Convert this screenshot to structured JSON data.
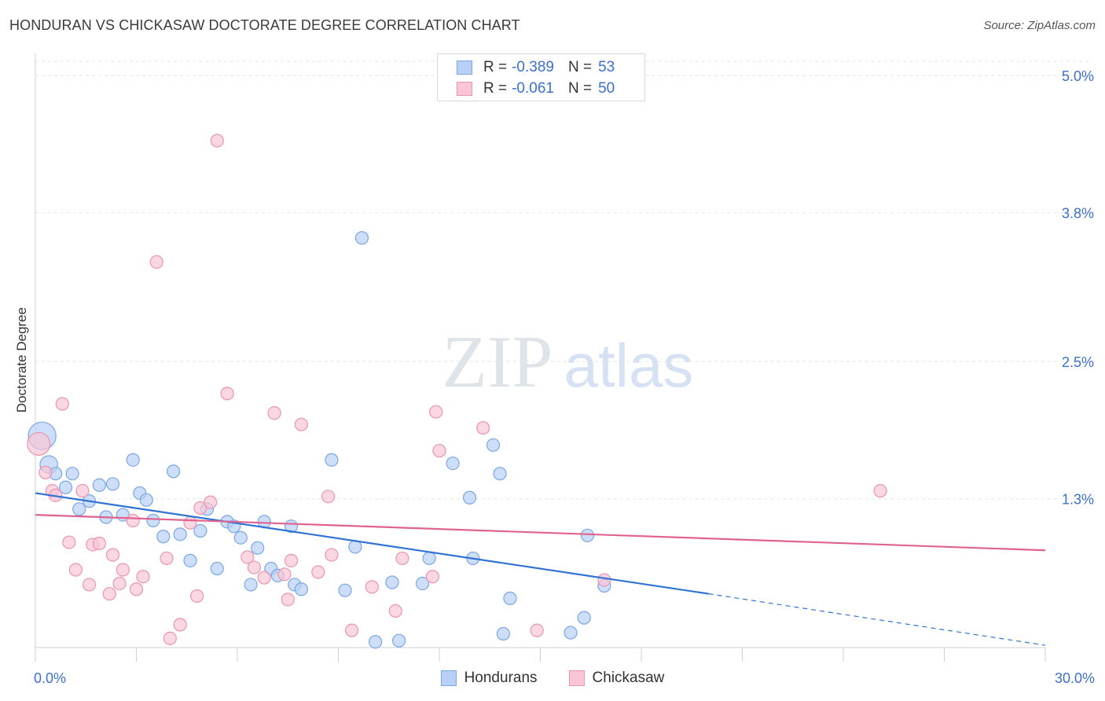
{
  "title": "HONDURAN VS CHICKASAW DOCTORATE DEGREE CORRELATION CHART",
  "source": "Source: ZipAtlas.com",
  "legend": {
    "rows": [
      {
        "r_label": "R =",
        "r_value": "-0.389",
        "n_label": "N =",
        "n_value": "53"
      },
      {
        "r_label": "R =",
        "r_value": "-0.061",
        "n_label": "N =",
        "n_value": "50"
      }
    ]
  },
  "bottom_legend": [
    "Hondurans",
    "Chickasaw"
  ],
  "colors": {
    "hondurans_fill": "#b8d0f5",
    "hondurans_stroke": "#7aa6e6",
    "hondurans_line": "#2f72d4",
    "chickasaw_fill": "#f8c6d6",
    "chickasaw_stroke": "#ec93b1",
    "chickasaw_line": "#e0628f",
    "tick_label": "#3b6fd1",
    "grid": "#e3e3e3",
    "watermark": "#dfe3ea"
  },
  "watermark": {
    "part1": "ZIP",
    "part2": "atlas"
  },
  "chart_data": {
    "type": "scatter",
    "title": "HONDURAN VS CHICKASAW DOCTORATE DEGREE CORRELATION CHART",
    "xlabel": "",
    "ylabel": "Doctorate Degree",
    "xlim": [
      0,
      30
    ],
    "ylim": [
      0,
      5.0
    ],
    "x_tick_labels": [
      "0.0%",
      "30.0%"
    ],
    "y_ticks": [
      1.3,
      2.5,
      3.8,
      5.0
    ],
    "y_tick_labels": [
      "1.3%",
      "2.5%",
      "3.8%",
      "5.0%"
    ],
    "series": [
      {
        "name": "Hondurans",
        "r": -0.389,
        "n": 53,
        "trend": {
          "x0": 0,
          "y0": 1.35,
          "x1": 20,
          "y1": 0.47,
          "dash_to_x": 30,
          "dash_to_y": 0.02
        },
        "points": [
          {
            "x": 0.2,
            "y": 1.85,
            "s": 2.2
          },
          {
            "x": 0.4,
            "y": 1.6,
            "s": 1.4
          },
          {
            "x": 0.6,
            "y": 1.52
          },
          {
            "x": 0.9,
            "y": 1.4
          },
          {
            "x": 1.1,
            "y": 1.52
          },
          {
            "x": 1.3,
            "y": 1.21
          },
          {
            "x": 1.6,
            "y": 1.28
          },
          {
            "x": 1.9,
            "y": 1.42
          },
          {
            "x": 2.1,
            "y": 1.14
          },
          {
            "x": 2.3,
            "y": 1.43
          },
          {
            "x": 2.6,
            "y": 1.16
          },
          {
            "x": 2.9,
            "y": 1.64
          },
          {
            "x": 3.1,
            "y": 1.35
          },
          {
            "x": 3.3,
            "y": 1.29
          },
          {
            "x": 3.5,
            "y": 1.11
          },
          {
            "x": 3.8,
            "y": 0.97
          },
          {
            "x": 4.1,
            "y": 1.54
          },
          {
            "x": 4.3,
            "y": 0.99
          },
          {
            "x": 4.6,
            "y": 0.76
          },
          {
            "x": 4.9,
            "y": 1.02
          },
          {
            "x": 5.1,
            "y": 1.21
          },
          {
            "x": 5.4,
            "y": 0.69
          },
          {
            "x": 5.7,
            "y": 1.1
          },
          {
            "x": 5.9,
            "y": 1.06
          },
          {
            "x": 6.1,
            "y": 0.96
          },
          {
            "x": 6.4,
            "y": 0.55
          },
          {
            "x": 6.6,
            "y": 0.87
          },
          {
            "x": 6.8,
            "y": 1.1
          },
          {
            "x": 7.0,
            "y": 0.69
          },
          {
            "x": 7.2,
            "y": 0.63
          },
          {
            "x": 7.6,
            "y": 1.06
          },
          {
            "x": 7.7,
            "y": 0.55
          },
          {
            "x": 7.9,
            "y": 0.51
          },
          {
            "x": 8.8,
            "y": 1.64
          },
          {
            "x": 9.2,
            "y": 0.5
          },
          {
            "x": 9.5,
            "y": 0.88
          },
          {
            "x": 9.7,
            "y": 3.58
          },
          {
            "x": 10.1,
            "y": 0.05
          },
          {
            "x": 10.6,
            "y": 0.57
          },
          {
            "x": 10.8,
            "y": 0.06
          },
          {
            "x": 11.5,
            "y": 0.56
          },
          {
            "x": 11.7,
            "y": 0.78
          },
          {
            "x": 12.4,
            "y": 1.61
          },
          {
            "x": 12.9,
            "y": 1.31
          },
          {
            "x": 13.0,
            "y": 0.78
          },
          {
            "x": 13.6,
            "y": 1.77
          },
          {
            "x": 13.8,
            "y": 1.52
          },
          {
            "x": 13.9,
            "y": 0.12
          },
          {
            "x": 14.1,
            "y": 0.43
          },
          {
            "x": 15.9,
            "y": 0.13
          },
          {
            "x": 16.3,
            "y": 0.26
          },
          {
            "x": 16.4,
            "y": 0.98
          },
          {
            "x": 16.9,
            "y": 0.54
          }
        ]
      },
      {
        "name": "Chickasaw",
        "r": -0.061,
        "n": 50,
        "trend": {
          "x0": 0,
          "y0": 1.16,
          "x1": 30,
          "y1": 0.85
        },
        "points": [
          {
            "x": 0.1,
            "y": 1.78,
            "s": 1.8
          },
          {
            "x": 0.3,
            "y": 1.53
          },
          {
            "x": 0.5,
            "y": 1.37
          },
          {
            "x": 0.6,
            "y": 1.33
          },
          {
            "x": 0.8,
            "y": 2.13
          },
          {
            "x": 1.0,
            "y": 0.92
          },
          {
            "x": 1.2,
            "y": 0.68
          },
          {
            "x": 1.4,
            "y": 1.37
          },
          {
            "x": 1.6,
            "y": 0.55
          },
          {
            "x": 1.7,
            "y": 0.9
          },
          {
            "x": 1.9,
            "y": 0.91
          },
          {
            "x": 2.2,
            "y": 0.47
          },
          {
            "x": 2.3,
            "y": 0.81
          },
          {
            "x": 2.5,
            "y": 0.56
          },
          {
            "x": 2.6,
            "y": 0.68
          },
          {
            "x": 2.9,
            "y": 1.11
          },
          {
            "x": 3.0,
            "y": 0.51
          },
          {
            "x": 3.2,
            "y": 0.62
          },
          {
            "x": 3.6,
            "y": 3.37
          },
          {
            "x": 3.9,
            "y": 0.78
          },
          {
            "x": 4.0,
            "y": 0.08
          },
          {
            "x": 4.3,
            "y": 0.2
          },
          {
            "x": 4.6,
            "y": 1.09
          },
          {
            "x": 4.8,
            "y": 0.45
          },
          {
            "x": 4.9,
            "y": 1.22
          },
          {
            "x": 5.2,
            "y": 1.27
          },
          {
            "x": 5.4,
            "y": 4.43
          },
          {
            "x": 5.7,
            "y": 2.22
          },
          {
            "x": 6.3,
            "y": 0.79
          },
          {
            "x": 6.5,
            "y": 0.7
          },
          {
            "x": 6.8,
            "y": 0.61
          },
          {
            "x": 7.1,
            "y": 2.05
          },
          {
            "x": 7.4,
            "y": 0.64
          },
          {
            "x": 7.5,
            "y": 0.42
          },
          {
            "x": 7.6,
            "y": 0.76
          },
          {
            "x": 7.9,
            "y": 1.95
          },
          {
            "x": 8.4,
            "y": 0.66
          },
          {
            "x": 8.7,
            "y": 1.32
          },
          {
            "x": 8.8,
            "y": 0.81
          },
          {
            "x": 9.4,
            "y": 0.15
          },
          {
            "x": 10.0,
            "y": 0.53
          },
          {
            "x": 10.7,
            "y": 0.32
          },
          {
            "x": 10.9,
            "y": 0.78
          },
          {
            "x": 11.8,
            "y": 0.62
          },
          {
            "x": 11.9,
            "y": 2.06
          },
          {
            "x": 12.0,
            "y": 1.72
          },
          {
            "x": 13.3,
            "y": 1.92
          },
          {
            "x": 14.9,
            "y": 0.15
          },
          {
            "x": 16.9,
            "y": 0.59
          },
          {
            "x": 25.1,
            "y": 1.37
          }
        ]
      }
    ]
  }
}
